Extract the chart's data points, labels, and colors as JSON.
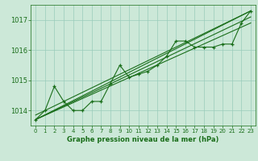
{
  "x": [
    0,
    1,
    2,
    3,
    4,
    5,
    6,
    7,
    8,
    9,
    10,
    11,
    12,
    13,
    14,
    15,
    16,
    17,
    18,
    19,
    20,
    21,
    22,
    23
  ],
  "y_main": [
    1013.7,
    1014.0,
    1014.8,
    1014.3,
    1014.0,
    1014.0,
    1014.3,
    1014.3,
    1014.9,
    1015.5,
    1015.1,
    1015.2,
    1015.3,
    1015.5,
    1015.8,
    1016.3,
    1016.3,
    1016.1,
    1016.1,
    1016.1,
    1016.2,
    1016.2,
    1016.9,
    1017.3
  ],
  "trend_lines": [
    [
      1013.7,
      1017.3
    ],
    [
      1013.7,
      1017.3
    ],
    [
      1013.7,
      1017.3
    ],
    [
      1013.7,
      1017.3
    ]
  ],
  "trend_x": [
    0,
    23
  ],
  "trend_offsets": [
    0.0,
    0.4,
    0.7,
    1.0
  ],
  "background_color": "#cce8d8",
  "grid_color": "#99ccbb",
  "line_color": "#1a6e1a",
  "marker_color": "#1a6e1a",
  "xlabel": "Graphe pression niveau de la mer (hPa)",
  "xlabel_color": "#1a6e1a",
  "tick_color": "#1a6e1a",
  "axis_color": "#1a6e1a",
  "ylim": [
    1013.5,
    1017.5
  ],
  "yticks": [
    1014,
    1015,
    1016,
    1017
  ],
  "xticks": [
    0,
    1,
    2,
    3,
    4,
    5,
    6,
    7,
    8,
    9,
    10,
    11,
    12,
    13,
    14,
    15,
    16,
    17,
    18,
    19,
    20,
    21,
    22,
    23
  ],
  "figwidth": 3.2,
  "figheight": 2.0,
  "dpi": 100
}
